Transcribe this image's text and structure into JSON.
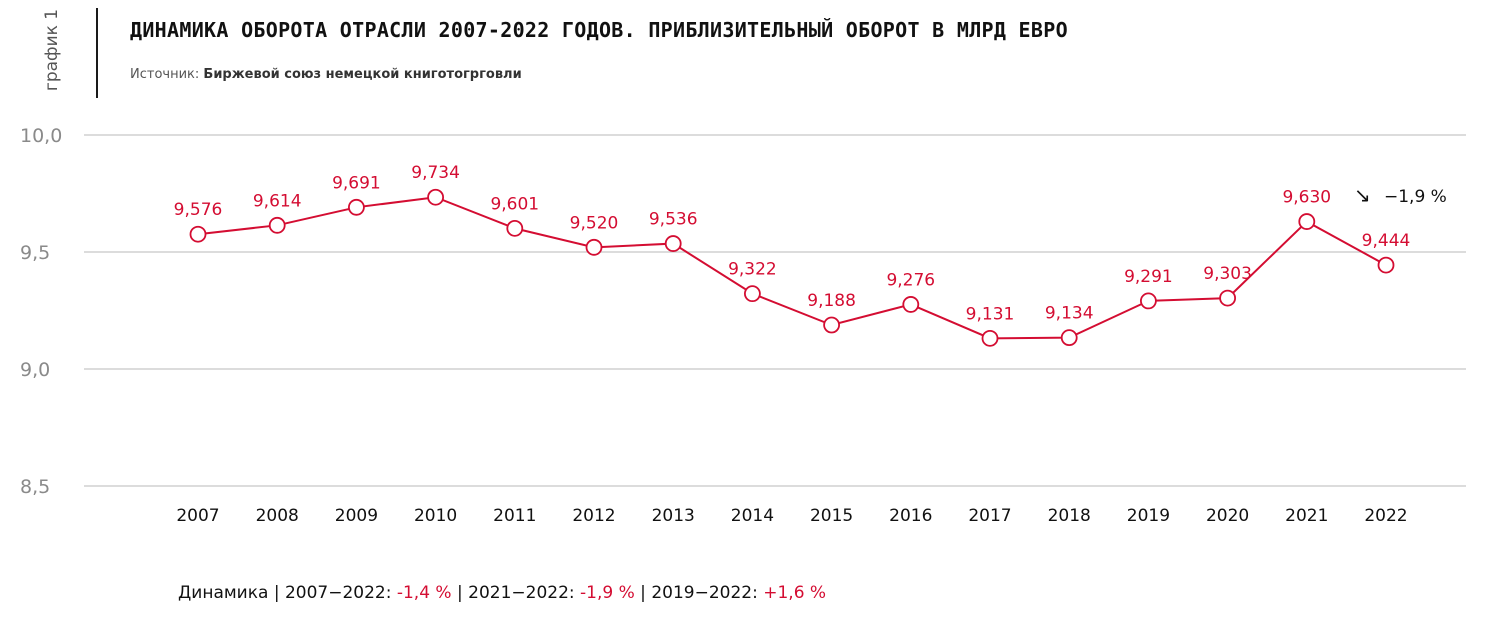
{
  "header": {
    "side_label": "график 1",
    "title": "ДИНАМИКА ОБОРОТА ОТРАСЛИ 2007-2022 ГОДОВ. ПРИБЛИЗИТЕЛЬНЫЙ ОБОРОТ В МЛРД ЕВРО",
    "source_prefix": "Источник: ",
    "source_name": "Биржевой союз немецкой книготогрговли"
  },
  "colors": {
    "series": "#d40d32",
    "grid": "#c8c8c8",
    "tick": "#8a8a8a"
  },
  "chart_data": {
    "type": "line",
    "title": "ДИНАМИКА ОБОРОТА ОТРАСЛИ 2007-2022 ГОДОВ. ПРИБЛИЗИТЕЛЬНЫЙ ОБОРОТ В МЛРД ЕВРО",
    "xlabel": "",
    "ylabel": "",
    "x": [
      "2007",
      "2008",
      "2009",
      "2010",
      "2011",
      "2012",
      "2013",
      "2014",
      "2015",
      "2016",
      "2017",
      "2018",
      "2019",
      "2020",
      "2021",
      "2022"
    ],
    "series": [
      {
        "values": [
          9.576,
          9.614,
          9.691,
          9.734,
          9.601,
          9.52,
          9.536,
          9.322,
          9.188,
          9.276,
          9.131,
          9.134,
          9.291,
          9.303,
          9.63,
          9.444
        ],
        "labels": [
          "9,576",
          "9,614",
          "9,691",
          "9,734",
          "9,601",
          "9,520",
          "9,536",
          "9,322",
          "9,188",
          "9,276",
          "9,131",
          "9,134",
          "9,291",
          "9,303",
          "9,630",
          "9,444"
        ]
      }
    ],
    "ylim": [
      8.5,
      10.0
    ],
    "yticks": [
      10.0,
      9.5,
      9.0,
      8.5
    ],
    "ytick_labels": [
      "10,0",
      "9,5",
      "9,0",
      "8,5"
    ],
    "grid": true,
    "annotation": {
      "arrow": "↘",
      "text": "−1,9 %"
    }
  },
  "footer": {
    "label": "Динамика | 2007−2022: ",
    "v1": "-1,4 %",
    "sep1": " | 2021−2022: ",
    "v2": "-1,9 %",
    "sep2": " | 2019−2022: ",
    "v3": "+1,6 %"
  }
}
